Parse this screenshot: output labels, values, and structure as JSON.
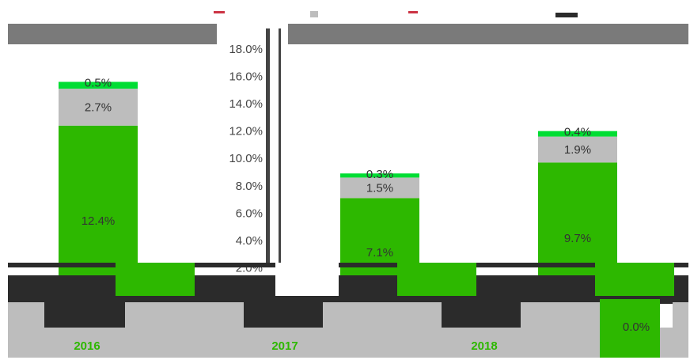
{
  "chart_data": {
    "type": "bar",
    "stacked": true,
    "categories": [
      "2016",
      "2017",
      "2018"
    ],
    "series": [
      {
        "name": "",
        "color": "#2db800",
        "values": [
          12.4,
          7.1,
          9.7
        ]
      },
      {
        "name": "",
        "color": "#bdbdbd",
        "values": [
          2.7,
          1.5,
          1.9
        ]
      },
      {
        "name": "",
        "color": "#00dd33",
        "values": [
          0.5,
          0.3,
          0.4
        ]
      }
    ],
    "value_labels": [
      [
        "12.4%",
        "2.7%",
        "0.5%"
      ],
      [
        "7.1%",
        "1.5%",
        "0.3%"
      ],
      [
        "9.7%",
        "1.9%",
        "0.4%"
      ]
    ],
    "yticks": [
      "2.0%",
      "4.0%",
      "6.0%",
      "8.0%",
      "10.0%",
      "12.0%",
      "14.0%",
      "16.0%",
      "18.0%"
    ],
    "ylim": [
      0,
      18
    ],
    "annotation": "0.0%",
    "grid": false,
    "legend_position": "top"
  }
}
